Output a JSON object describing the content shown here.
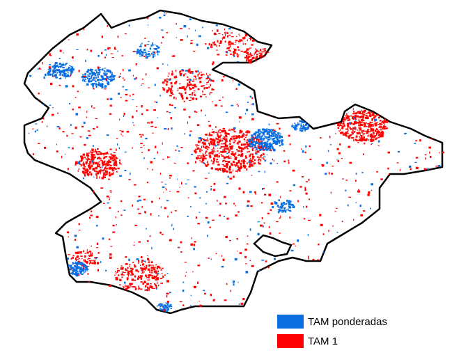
{
  "legend": {
    "items": [
      {
        "label": "TAM ponderadas",
        "color": "#0a6fe0"
      },
      {
        "label": "TAM 1",
        "color": "#ff0000"
      }
    ]
  }
}
